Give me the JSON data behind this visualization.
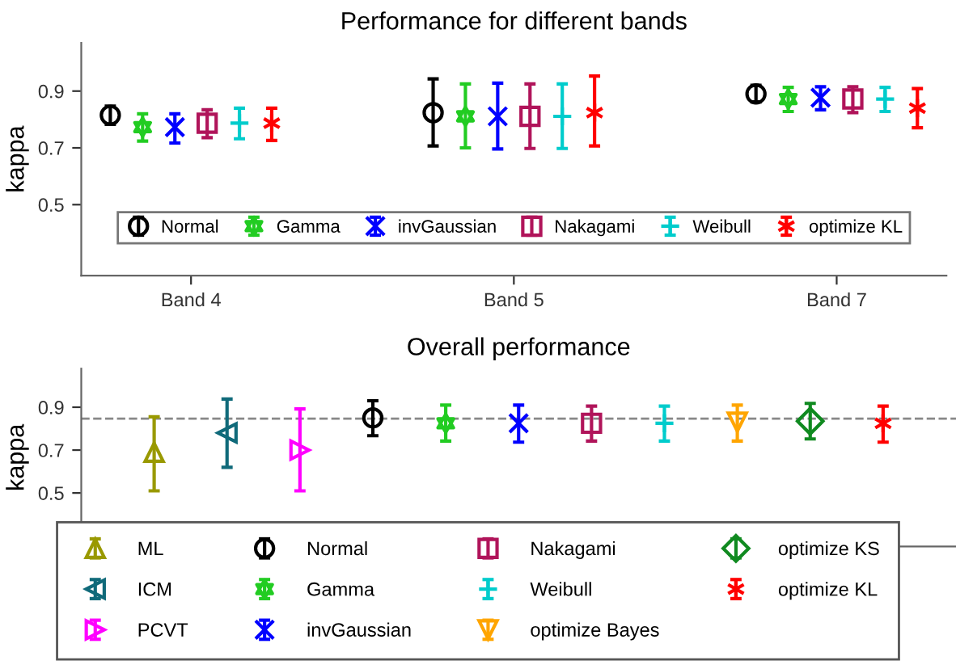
{
  "chart_data": [
    {
      "type": "scatter",
      "title": "Performance for different bands",
      "ylabel": "kappa",
      "categories": [
        "Band 4",
        "Band 5",
        "Band 7"
      ],
      "ylim": [
        0.25,
        1.07
      ],
      "yticks": [
        0.5,
        0.7,
        0.9
      ],
      "grid": false,
      "legend": "bottom",
      "line_style": "none",
      "series": [
        {
          "name": "Normal",
          "color": "#000000",
          "marker": "circle",
          "values": [
            0.815,
            0.824,
            0.89
          ],
          "errors": [
            [
              0.783,
              0.847
            ],
            [
              0.707,
              0.943
            ],
            [
              0.862,
              0.92
            ]
          ]
        },
        {
          "name": "Gamma",
          "color": "#22cc22",
          "marker": "star",
          "values": [
            0.773,
            0.811,
            0.872
          ],
          "errors": [
            [
              0.724,
              0.82
            ],
            [
              0.7,
              0.925
            ],
            [
              0.828,
              0.913
            ]
          ]
        },
        {
          "name": "invGaussian",
          "color": "#0000ff",
          "marker": "x",
          "values": [
            0.773,
            0.811,
            0.877
          ],
          "errors": [
            [
              0.717,
              0.82
            ],
            [
              0.696,
              0.928
            ],
            [
              0.834,
              0.915
            ]
          ]
        },
        {
          "name": "Nakagami",
          "color": "#b0145a",
          "marker": "square",
          "values": [
            0.787,
            0.811,
            0.872
          ],
          "errors": [
            [
              0.736,
              0.834
            ],
            [
              0.698,
              0.925
            ],
            [
              0.824,
              0.915
            ]
          ]
        },
        {
          "name": "Weibull",
          "color": "#00cccc",
          "marker": "plus",
          "values": [
            0.787,
            0.811,
            0.872
          ],
          "errors": [
            [
              0.732,
              0.84
            ],
            [
              0.698,
              0.925
            ],
            [
              0.828,
              0.913
            ]
          ]
        },
        {
          "name": "optimize KL",
          "color": "#ff0000",
          "marker": "cross",
          "values": [
            0.787,
            0.824,
            0.84
          ],
          "errors": [
            [
              0.726,
              0.84
            ],
            [
              0.707,
              0.953
            ],
            [
              0.771,
              0.909
            ]
          ]
        }
      ]
    },
    {
      "type": "scatter",
      "title": "Overall performance",
      "ylabel": "kappa",
      "categories": [
        null,
        null,
        null,
        null,
        null,
        null,
        null,
        null,
        null,
        null,
        null
      ],
      "ylim": [
        0.25,
        1.08
      ],
      "yticks": [
        0.5,
        0.7,
        0.9
      ],
      "grid": false,
      "legend": "bottom",
      "line_style": "none",
      "ref_lines": [
        {
          "axis": "y",
          "value": 0.847,
          "color": "#888888",
          "line_style": "dashed"
        }
      ],
      "series": [
        {
          "name": "ML",
          "color": "#999900",
          "marker": "triangle",
          "values": [
            0.69,
            null,
            null,
            null,
            null,
            null,
            null,
            null,
            null,
            null,
            null
          ],
          "errors": [
            [
              0.51,
              0.855
            ],
            null,
            null,
            null,
            null,
            null,
            null,
            null,
            null,
            null,
            null
          ]
        },
        {
          "name": "ICM",
          "color": "#106a7a",
          "marker": "triangle_left",
          "values": [
            null,
            0.78,
            null,
            null,
            null,
            null,
            null,
            null,
            null,
            null,
            null
          ],
          "errors": [
            null,
            [
              0.62,
              0.938
            ],
            null,
            null,
            null,
            null,
            null,
            null,
            null,
            null,
            null
          ]
        },
        {
          "name": "PCVT",
          "color": "#ff00ff",
          "marker": "triangle_right",
          "values": [
            null,
            null,
            0.7,
            null,
            null,
            null,
            null,
            null,
            null,
            null,
            null
          ],
          "errors": [
            null,
            null,
            [
              0.51,
              0.892
            ],
            null,
            null,
            null,
            null,
            null,
            null,
            null,
            null
          ]
        },
        {
          "name": "Normal",
          "color": "#000000",
          "marker": "circle",
          "values": [
            null,
            null,
            null,
            0.85,
            null,
            null,
            null,
            null,
            null,
            null,
            null
          ],
          "errors": [
            null,
            null,
            null,
            [
              0.767,
              0.93
            ],
            null,
            null,
            null,
            null,
            null,
            null,
            null
          ]
        },
        {
          "name": "Gamma",
          "color": "#22cc22",
          "marker": "star",
          "values": [
            null,
            null,
            null,
            null,
            0.825,
            null,
            null,
            null,
            null,
            null,
            null
          ],
          "errors": [
            null,
            null,
            null,
            null,
            [
              0.742,
              0.91
            ],
            null,
            null,
            null,
            null,
            null,
            null
          ]
        },
        {
          "name": "invGaussian",
          "color": "#0000ff",
          "marker": "x",
          "values": [
            null,
            null,
            null,
            null,
            null,
            0.825,
            null,
            null,
            null,
            null,
            null
          ],
          "errors": [
            null,
            null,
            null,
            null,
            null,
            [
              0.737,
              0.91
            ],
            null,
            null,
            null,
            null,
            null
          ]
        },
        {
          "name": "Nakagami",
          "color": "#b0145a",
          "marker": "square",
          "values": [
            null,
            null,
            null,
            null,
            null,
            null,
            0.825,
            null,
            null,
            null,
            null
          ],
          "errors": [
            null,
            null,
            null,
            null,
            null,
            null,
            [
              0.742,
              0.905
            ],
            null,
            null,
            null,
            null
          ]
        },
        {
          "name": "Weibull",
          "color": "#00cccc",
          "marker": "plus",
          "values": [
            null,
            null,
            null,
            null,
            null,
            null,
            null,
            0.825,
            null,
            null,
            null
          ],
          "errors": [
            null,
            null,
            null,
            null,
            null,
            null,
            null,
            [
              0.742,
              0.905
            ],
            null,
            null,
            null
          ]
        },
        {
          "name": "optimize Bayes",
          "color": "#ffa500",
          "marker": "triangle_down",
          "values": [
            null,
            null,
            null,
            null,
            null,
            null,
            null,
            null,
            0.83,
            null,
            null
          ],
          "errors": [
            null,
            null,
            null,
            null,
            null,
            null,
            null,
            null,
            [
              0.742,
              0.91
            ],
            null,
            null
          ]
        },
        {
          "name": "optimize KS",
          "color": "#108a20",
          "marker": "diamond",
          "values": [
            null,
            null,
            null,
            null,
            null,
            null,
            null,
            null,
            null,
            0.835,
            null
          ],
          "errors": [
            null,
            null,
            null,
            null,
            null,
            null,
            null,
            null,
            null,
            [
              0.752,
              0.918
            ],
            null
          ]
        },
        {
          "name": "optimize KL",
          "color": "#ff0000",
          "marker": "cross",
          "values": [
            null,
            null,
            null,
            null,
            null,
            null,
            null,
            null,
            null,
            null,
            0.825
          ],
          "errors": [
            null,
            null,
            null,
            null,
            null,
            null,
            null,
            null,
            null,
            null,
            [
              0.737,
              0.905
            ]
          ]
        }
      ]
    }
  ]
}
